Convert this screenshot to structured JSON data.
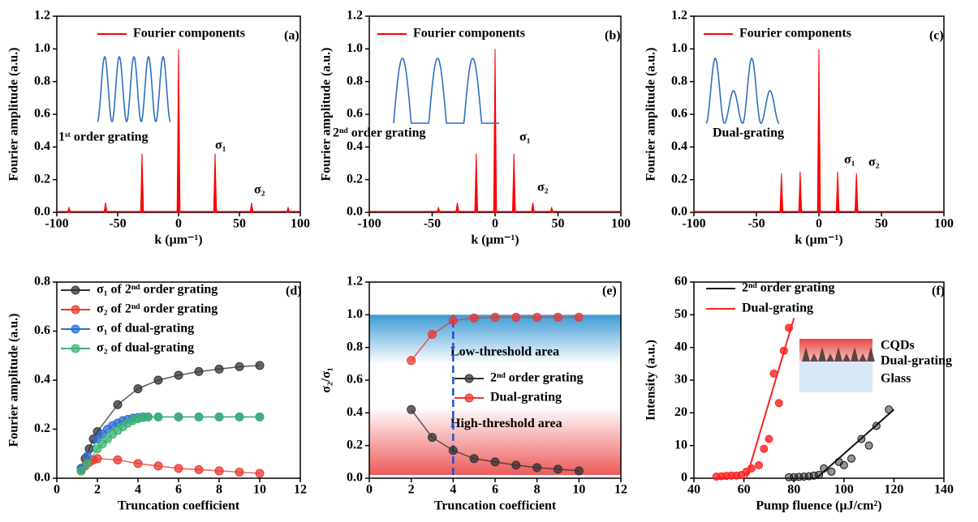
{
  "chart_data": [
    {
      "type": "spectrum",
      "xlabel": "k (μm⁻¹)",
      "ylabel": "Fourier amplitude (a.u.)",
      "xlim": [
        -100,
        100
      ],
      "xticks": [
        -100,
        -50,
        0,
        50,
        100
      ],
      "ylim": [
        0,
        1.2
      ],
      "yticks": [
        {
          "value": 0,
          "label": "0.0"
        },
        0.2,
        0.4,
        0.6,
        0.8,
        {
          "value": 1,
          "label": "1.0"
        },
        1.2
      ],
      "series": [
        {
          "name": "Fourier components",
          "color": "#ff0000",
          "x": [
            -90,
            -60,
            -30,
            0,
            30,
            60,
            90
          ],
          "values": [
            0.03,
            0.06,
            0.36,
            1.0,
            0.36,
            0.06,
            0.03
          ]
        }
      ],
      "annotations": [
        "(a)",
        "1ˢᵗ order grating",
        "σ₁",
        "σ₂"
      ]
    },
    {
      "type": "spectrum",
      "xlabel": "k (μm⁻¹)",
      "ylabel": "Fourier amplitude (a.u.)",
      "xlim": [
        -100,
        100
      ],
      "xticks": [
        -100,
        -50,
        0,
        50,
        100
      ],
      "ylim": [
        0,
        1.2
      ],
      "yticks": [
        {
          "value": 0,
          "label": "0.0"
        },
        0.2,
        0.4,
        0.6,
        0.8,
        {
          "value": 1,
          "label": "1.0"
        },
        1.2
      ],
      "series": [
        {
          "name": "Fourier components",
          "color": "#ff0000",
          "x": [
            -45,
            -30,
            -15,
            0,
            15,
            30,
            45
          ],
          "values": [
            0.03,
            0.06,
            0.36,
            1.0,
            0.36,
            0.06,
            0.03
          ]
        }
      ],
      "annotations": [
        "(b)",
        "2ⁿᵈ order grating",
        "σ₁",
        "σ₂"
      ]
    },
    {
      "type": "spectrum",
      "xlabel": "k (μm⁻¹)",
      "ylabel": "Fourier amplitude (a.u.)",
      "xlim": [
        -100,
        100
      ],
      "xticks": [
        -100,
        -50,
        0,
        50,
        100
      ],
      "ylim": [
        0,
        1.2
      ],
      "yticks": [
        {
          "value": 0,
          "label": "0.0"
        },
        0.2,
        0.4,
        0.6,
        0.8,
        {
          "value": 1,
          "label": "1.0"
        },
        1.2
      ],
      "series": [
        {
          "name": "Fourier components",
          "color": "#ff0000",
          "x": [
            -30,
            -15,
            0,
            15,
            30
          ],
          "values": [
            0.24,
            0.25,
            1.0,
            0.25,
            0.24
          ]
        }
      ],
      "annotations": [
        "(c)",
        "Dual-grating",
        "σ₁",
        "σ₂"
      ]
    },
    {
      "type": "line",
      "xlabel": "Truncation coefficient",
      "ylabel": "Fourier amplitude (a.u.)",
      "xlim": [
        0,
        12
      ],
      "xticks": [
        0,
        2,
        4,
        6,
        8,
        10,
        12
      ],
      "ylim": [
        0,
        0.8
      ],
      "yticks": [
        {
          "value": 0,
          "label": "0.0"
        },
        0.2,
        0.4,
        0.6,
        0.8
      ],
      "series": [
        {
          "name": "σ₁ of 2ⁿᵈ order grating",
          "color": "#333333",
          "x": [
            1.2,
            1.4,
            1.6,
            1.8,
            2,
            3,
            4,
            5,
            6,
            7,
            8,
            9,
            10
          ],
          "values": [
            0.04,
            0.08,
            0.12,
            0.16,
            0.19,
            0.3,
            0.365,
            0.4,
            0.42,
            0.435,
            0.445,
            0.455,
            0.46
          ]
        },
        {
          "name": "σ₂ of 2ⁿᵈ order grating",
          "color": "#e8382f",
          "x": [
            1.2,
            1.4,
            1.6,
            1.8,
            2,
            3,
            4,
            5,
            6,
            7,
            8,
            9,
            10
          ],
          "values": [
            0.03,
            0.05,
            0.065,
            0.075,
            0.08,
            0.075,
            0.06,
            0.05,
            0.04,
            0.035,
            0.03,
            0.025,
            0.02
          ]
        },
        {
          "name": "σ₁ of dual-grating",
          "color": "#2a6fd6",
          "x": [
            1.2,
            1.5,
            2,
            2.25,
            2.5,
            2.75,
            3,
            3.25,
            3.5,
            3.75,
            4,
            4.25,
            4.5,
            5,
            6,
            7,
            8,
            9,
            10
          ],
          "values": [
            0.04,
            0.09,
            0.16,
            0.18,
            0.2,
            0.215,
            0.225,
            0.235,
            0.24,
            0.245,
            0.248,
            0.25,
            0.25,
            0.25,
            0.25,
            0.25,
            0.25,
            0.25,
            0.25
          ]
        },
        {
          "name": "σ₂ of dual-grating",
          "color": "#3cb371",
          "x": [
            1.2,
            1.5,
            2,
            2.25,
            2.5,
            2.75,
            3,
            3.25,
            3.5,
            3.75,
            4,
            4.25,
            4.5,
            5,
            6,
            7,
            8,
            9,
            10
          ],
          "values": [
            0.03,
            0.06,
            0.12,
            0.14,
            0.16,
            0.18,
            0.195,
            0.21,
            0.225,
            0.235,
            0.243,
            0.248,
            0.25,
            0.25,
            0.25,
            0.25,
            0.25,
            0.25,
            0.25
          ]
        }
      ],
      "annotations": [
        "(d)"
      ]
    },
    {
      "type": "line",
      "xlabel": "Truncation coefficient",
      "ylabel": "σ₂/σ₁",
      "xlim": [
        0,
        12
      ],
      "xticks": [
        0,
        2,
        4,
        6,
        8,
        10,
        12
      ],
      "ylim": [
        0,
        1.2
      ],
      "yticks": [
        {
          "value": 0,
          "label": "0.0"
        },
        0.2,
        0.4,
        0.6,
        0.8,
        {
          "value": 1,
          "label": "1.0"
        },
        1.2
      ],
      "bands": [
        {
          "label": "Low-threshold area",
          "range": [
            0.7,
            1.0
          ],
          "color": "#3d9ad6"
        },
        {
          "label": "High-threshold area",
          "range": [
            0.02,
            0.44
          ],
          "color": "#ee5a5a"
        }
      ],
      "vline": {
        "x": 4,
        "range": [
          0.02,
          1.0
        ],
        "color": "#1f4fd1"
      },
      "series": [
        {
          "name": "2ⁿᵈ order grating",
          "color": "#333333",
          "x": [
            2,
            3,
            4,
            5,
            6,
            7,
            8,
            9,
            10
          ],
          "values": [
            0.42,
            0.25,
            0.17,
            0.12,
            0.1,
            0.08,
            0.065,
            0.055,
            0.045
          ]
        },
        {
          "name": "Dual-grating",
          "color": "#e8382f",
          "x": [
            2,
            3,
            4,
            5,
            6,
            7,
            8,
            9,
            10
          ],
          "values": [
            0.72,
            0.88,
            0.965,
            0.98,
            0.985,
            0.985,
            0.985,
            0.985,
            0.985
          ]
        }
      ],
      "annotations": [
        "(e)"
      ]
    },
    {
      "type": "scatter",
      "xlabel": "Pump fluence (μJ/cm²)",
      "ylabel": "Intensity (a.u.)",
      "xlim": [
        40,
        140
      ],
      "xticks": [
        40,
        60,
        80,
        100,
        120,
        140
      ],
      "ylim": [
        0,
        60
      ],
      "yticks": [
        0,
        10,
        20,
        30,
        40,
        50,
        60
      ],
      "series": [
        {
          "name": "2ⁿᵈ order grating",
          "color": "#111111",
          "x": [
            78,
            80,
            82,
            84,
            86,
            88,
            90,
            92,
            95,
            98,
            100,
            103,
            107,
            110,
            113,
            118
          ],
          "values": [
            0.3,
            0.3,
            0.4,
            0.5,
            0.6,
            0.8,
            1,
            3,
            2,
            5,
            4,
            6,
            12,
            10,
            16,
            21
          ],
          "fit": {
            "x": [
              89,
              120
            ],
            "values": [
              0,
              21
            ]
          }
        },
        {
          "name": "Dual-grating",
          "color": "#ff2020",
          "x": [
            49,
            51,
            53,
            55,
            57,
            59,
            61,
            63,
            66,
            68,
            70,
            72,
            74,
            76,
            78
          ],
          "values": [
            0.5,
            0.6,
            0.7,
            0.8,
            0.8,
            1,
            2,
            3,
            4,
            9,
            12,
            32,
            23,
            39,
            46
          ],
          "fit": {
            "x": [
              61,
              80
            ],
            "values": [
              0,
              49
            ]
          }
        }
      ],
      "annotations": [
        "(f)",
        "CQDs",
        "Dual-grating",
        "Glass"
      ]
    }
  ]
}
